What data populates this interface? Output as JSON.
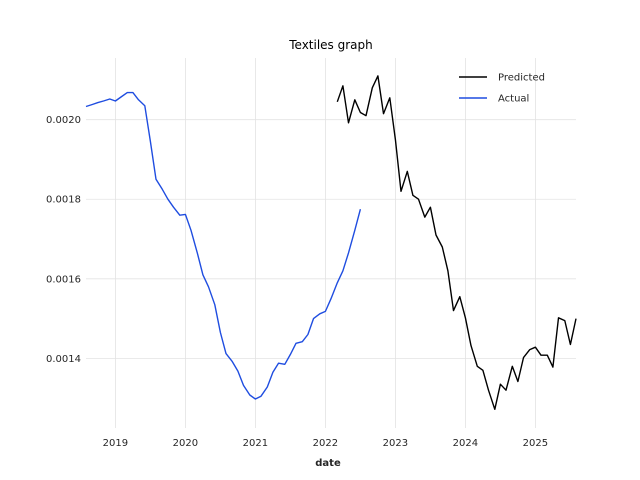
{
  "chart_data": {
    "type": "line",
    "title": "Textiles graph",
    "xlabel": "date",
    "ylabel": "",
    "xlim": [
      2018.58,
      2025.58
    ],
    "ylim": [
      0.001225,
      0.002155
    ],
    "grid": true,
    "legend_position": "top-right",
    "x_ticks": [
      2019,
      2020,
      2021,
      2022,
      2023,
      2024,
      2025
    ],
    "x_tick_labels": [
      "2019",
      "2020",
      "2021",
      "2022",
      "2023",
      "2024",
      "2025"
    ],
    "y_ticks": [
      0.0014,
      0.0016,
      0.0018,
      0.002
    ],
    "y_tick_labels": [
      "0.0014",
      "0.0016",
      "0.0018",
      "0.0020"
    ],
    "series": [
      {
        "name": "Predicted",
        "color": "#000000",
        "x": [
          2022.17,
          2022.25,
          2022.33,
          2022.42,
          2022.5,
          2022.58,
          2022.67,
          2022.75,
          2022.83,
          2022.92,
          2023.0,
          2023.08,
          2023.17,
          2023.25,
          2023.33,
          2023.42,
          2023.5,
          2023.58,
          2023.67,
          2023.75,
          2023.83,
          2023.92,
          2024.0,
          2024.08,
          2024.17,
          2024.25,
          2024.33,
          2024.42,
          2024.5,
          2024.58,
          2024.67,
          2024.75,
          2024.83,
          2024.92,
          2025.0,
          2025.08,
          2025.17,
          2025.25,
          2025.33,
          2025.42,
          2025.5,
          2025.58
        ],
        "values": [
          0.002045,
          0.002085,
          0.001992,
          0.00205,
          0.002018,
          0.00201,
          0.00208,
          0.00211,
          0.002015,
          0.002055,
          0.00195,
          0.00182,
          0.00187,
          0.00181,
          0.0018,
          0.001755,
          0.00178,
          0.00171,
          0.00168,
          0.00162,
          0.00152,
          0.001555,
          0.001502,
          0.001432,
          0.00138,
          0.00137,
          0.00132,
          0.001272,
          0.001335,
          0.00132,
          0.00138,
          0.001342,
          0.001402,
          0.001422,
          0.001428,
          0.001408,
          0.001408,
          0.001378,
          0.001502,
          0.001495,
          0.001435,
          0.0015
        ]
      },
      {
        "name": "Actual",
        "color": "#1f4de0",
        "x": [
          2018.58,
          2018.67,
          2018.75,
          2018.83,
          2018.92,
          2019.0,
          2019.08,
          2019.17,
          2019.25,
          2019.33,
          2019.42,
          2019.5,
          2019.58,
          2019.67,
          2019.75,
          2019.83,
          2019.92,
          2020.0,
          2020.08,
          2020.17,
          2020.25,
          2020.33,
          2020.42,
          2020.5,
          2020.58,
          2020.67,
          2020.75,
          2020.83,
          2020.92,
          2021.0,
          2021.08,
          2021.17,
          2021.25,
          2021.33,
          2021.42,
          2021.5,
          2021.58,
          2021.67,
          2021.75,
          2021.83,
          2021.92,
          2022.0,
          2022.08,
          2022.17,
          2022.25,
          2022.33,
          2022.42,
          2022.5
        ],
        "values": [
          0.002033,
          0.002038,
          0.002043,
          0.002047,
          0.002052,
          0.002047,
          0.002057,
          0.002068,
          0.002068,
          0.00205,
          0.002035,
          0.001945,
          0.00185,
          0.001825,
          0.0018,
          0.00178,
          0.00176,
          0.001762,
          0.001722,
          0.001665,
          0.00161,
          0.00158,
          0.001535,
          0.001465,
          0.001412,
          0.001392,
          0.001368,
          0.001332,
          0.001308,
          0.001298,
          0.001305,
          0.001328,
          0.001365,
          0.001388,
          0.001385,
          0.00141,
          0.001438,
          0.001442,
          0.00146,
          0.0015,
          0.001512,
          0.001518,
          0.00155,
          0.00159,
          0.00162,
          0.001665,
          0.001722,
          0.001775
        ]
      }
    ]
  }
}
